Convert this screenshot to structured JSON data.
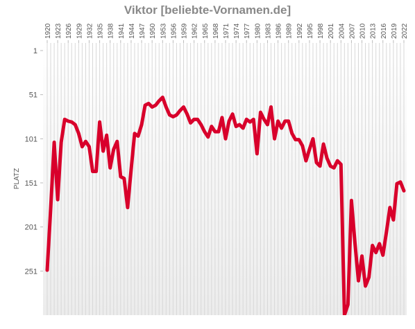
{
  "chart_data": {
    "type": "line",
    "title": "Viktor [beliebte-Vornamen.de]",
    "ylabel": "PLATZ",
    "x": [
      1920,
      1921,
      1922,
      1923,
      1924,
      1925,
      1926,
      1927,
      1928,
      1929,
      1930,
      1931,
      1932,
      1933,
      1934,
      1935,
      1936,
      1937,
      1938,
      1939,
      1940,
      1941,
      1942,
      1943,
      1944,
      1945,
      1946,
      1947,
      1948,
      1949,
      1950,
      1951,
      1952,
      1953,
      1954,
      1955,
      1956,
      1957,
      1958,
      1959,
      1960,
      1961,
      1962,
      1963,
      1964,
      1965,
      1966,
      1967,
      1968,
      1969,
      1970,
      1971,
      1972,
      1973,
      1974,
      1975,
      1976,
      1977,
      1978,
      1979,
      1980,
      1981,
      1982,
      1983,
      1984,
      1985,
      1986,
      1987,
      1988,
      1989,
      1990,
      1991,
      1992,
      1993,
      1994,
      1995,
      1996,
      1997,
      1998,
      1999,
      2000,
      2001,
      2002,
      2003,
      2004,
      2005,
      2006,
      2007,
      2008,
      2009,
      2010,
      2011,
      2012,
      2013,
      2014,
      2015,
      2016,
      2017,
      2018,
      2019,
      2020,
      2021,
      2022
    ],
    "series": [
      {
        "name": "Viktor",
        "color": "#d8002b",
        "values": [
          250,
          180,
          105,
          170,
          105,
          79,
          81,
          82,
          85,
          95,
          110,
          104,
          110,
          138,
          138,
          82,
          115,
          97,
          134,
          113,
          104,
          144,
          146,
          179,
          136,
          95,
          98,
          85,
          63,
          61,
          65,
          63,
          58,
          54,
          65,
          74,
          76,
          74,
          69,
          65,
          73,
          83,
          79,
          79,
          85,
          93,
          99,
          87,
          93,
          93,
          77,
          101,
          81,
          73,
          87,
          85,
          89,
          79,
          82,
          79,
          118,
          71,
          79,
          85,
          65,
          101,
          81,
          89,
          81,
          81,
          95,
          102,
          102,
          109,
          126,
          113,
          101,
          128,
          132,
          107,
          123,
          132,
          134,
          126,
          130,
          301,
          289,
          171,
          219,
          262,
          234,
          268,
          258,
          222,
          230,
          220,
          233,
          207,
          179,
          193,
          152,
          150,
          160
        ]
      }
    ],
    "xlim": [
      1920,
      2022
    ],
    "xticks": [
      1920,
      1923,
      1926,
      1929,
      1932,
      1935,
      1938,
      1941,
      1944,
      1947,
      1950,
      1953,
      1956,
      1959,
      1962,
      1965,
      1968,
      1971,
      1974,
      1977,
      1980,
      1983,
      1986,
      1989,
      1992,
      1995,
      1998,
      2001,
      2004,
      2007,
      2010,
      2013,
      2016,
      2019,
      2022
    ],
    "ylim": [
      1,
      301
    ],
    "y_inverted": true,
    "yticks": [
      1,
      51,
      101,
      151,
      201,
      251
    ],
    "grid": true
  }
}
